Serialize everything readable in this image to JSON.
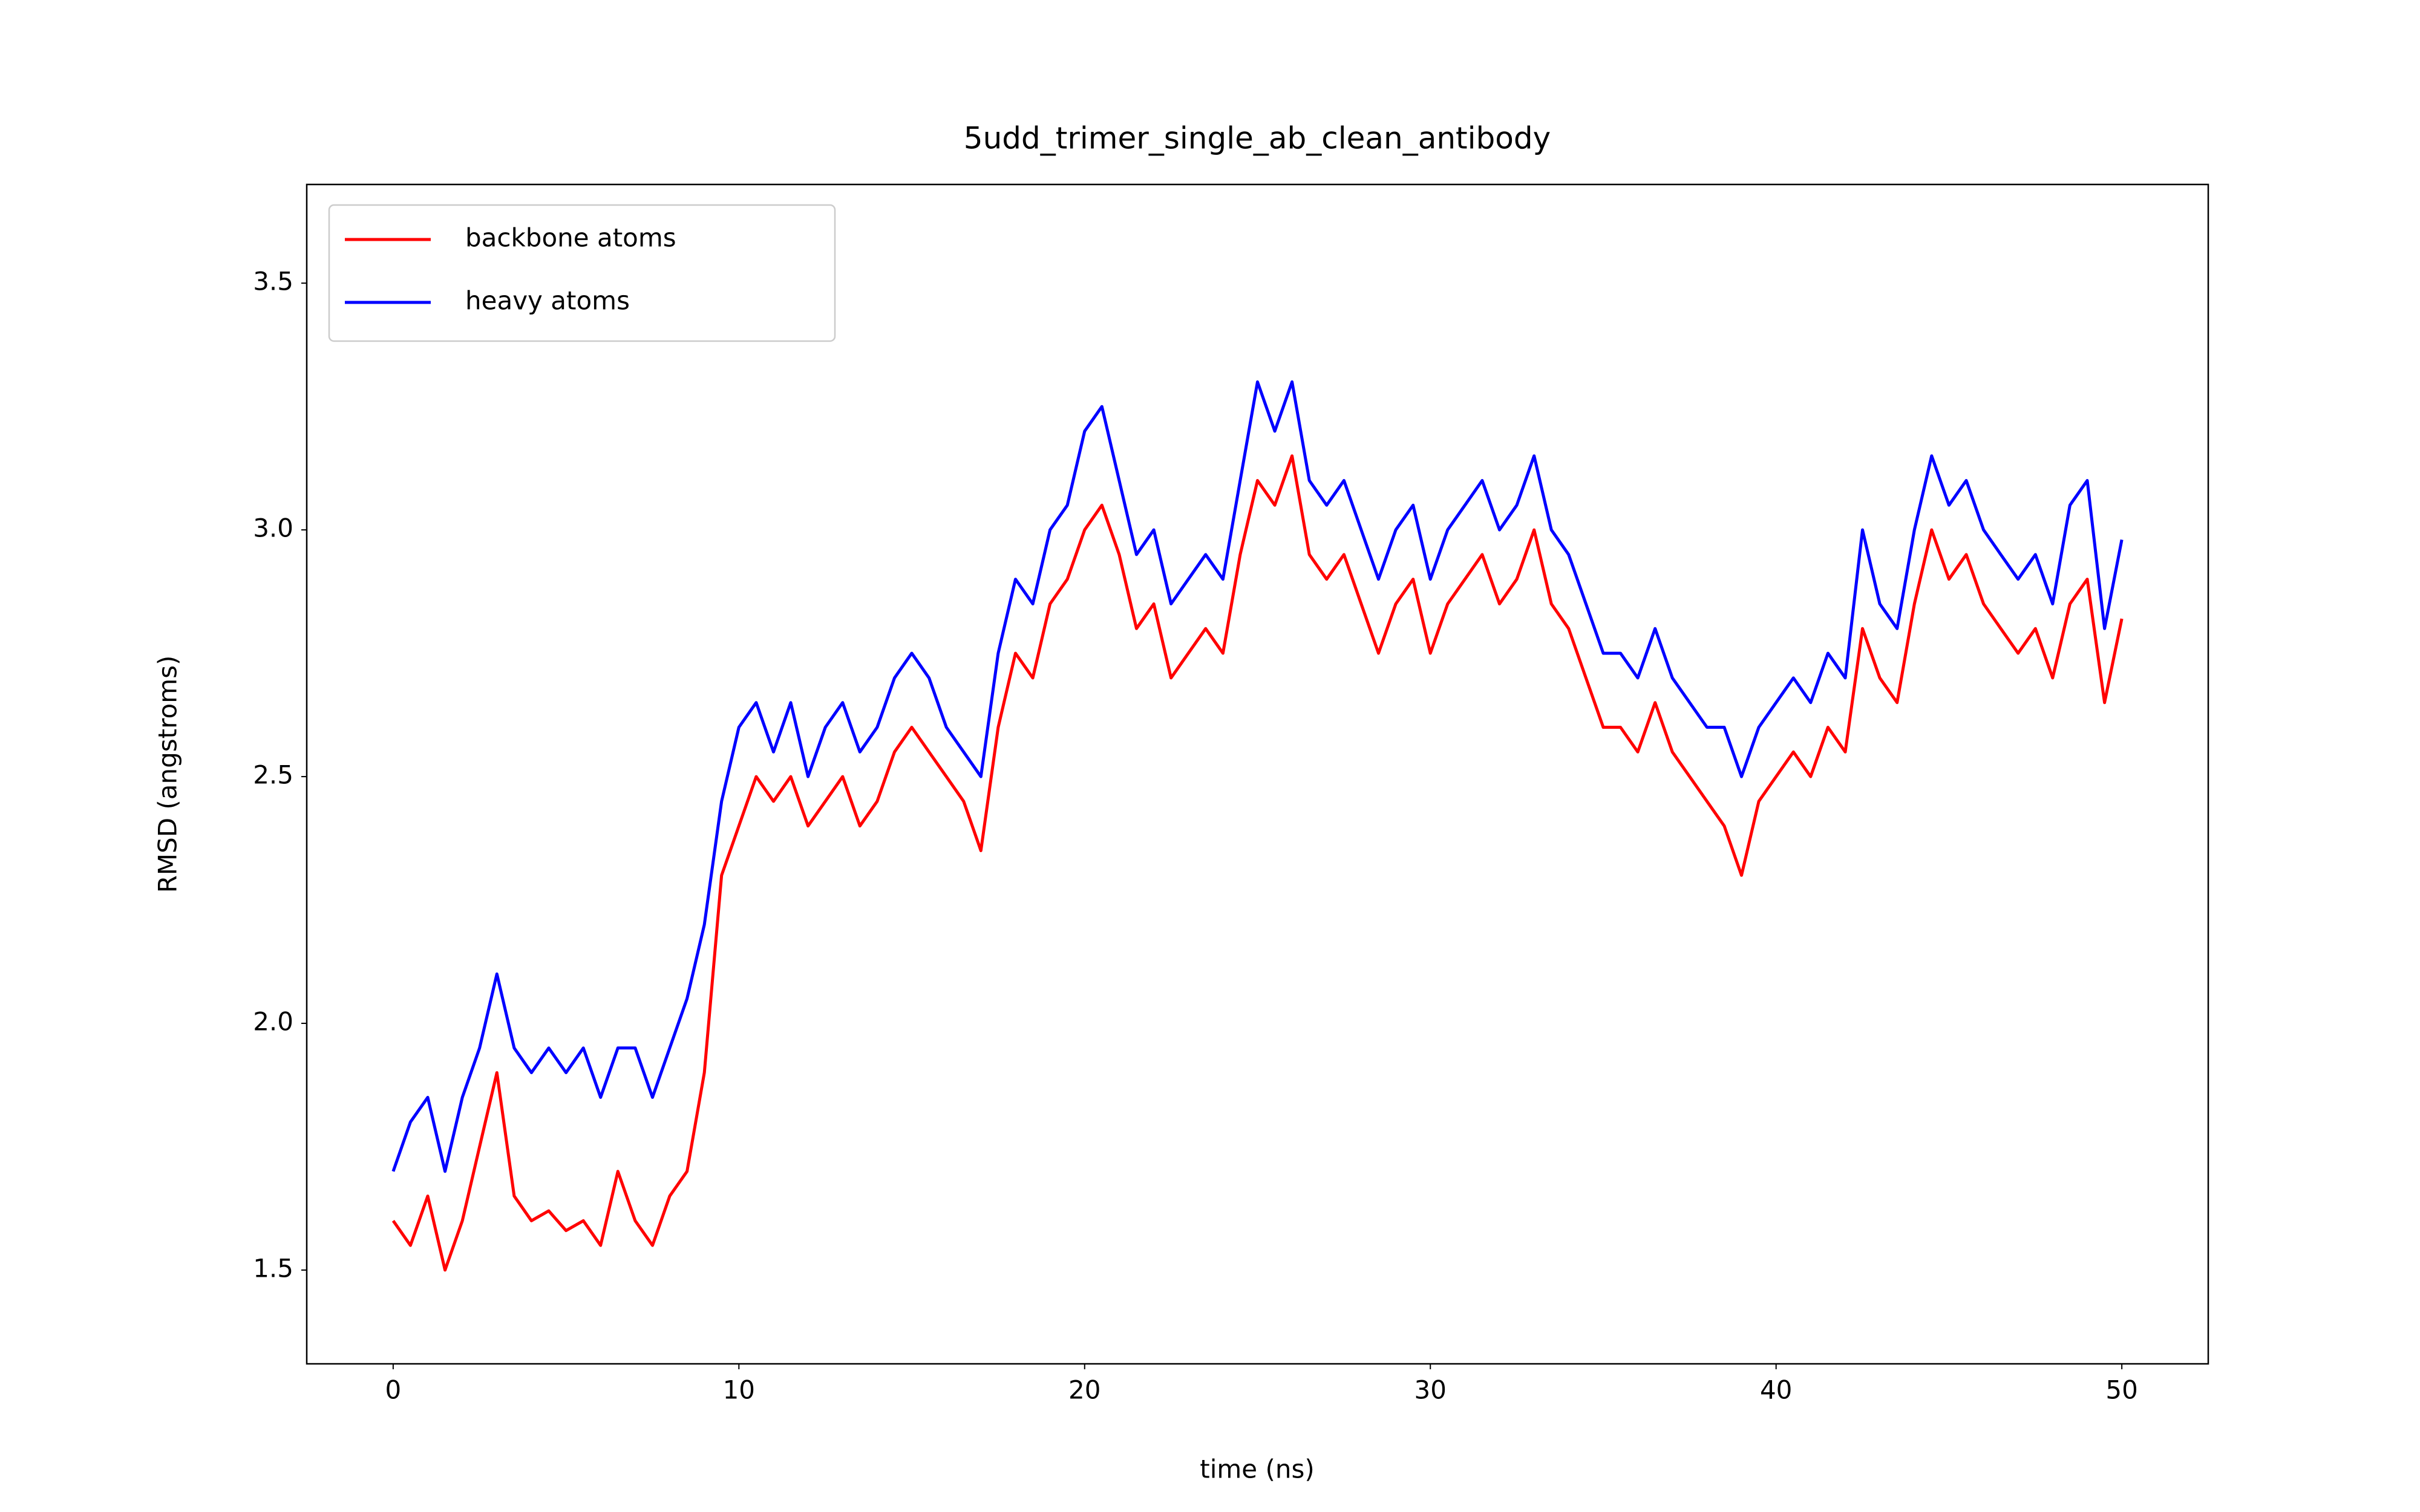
{
  "chart_data": {
    "type": "line",
    "title": "5udd_trimer_single_ab_clean_antibody",
    "x_label": "time (ns)",
    "y_label": "RMSD (angstroms)",
    "x": [
      0,
      0.5,
      1,
      1.5,
      2,
      2.5,
      3,
      3.5,
      4,
      4.5,
      5,
      5.5,
      6,
      6.5,
      7,
      7.5,
      8,
      8.5,
      9,
      9.5,
      10,
      10.5,
      11,
      11.5,
      12,
      12.5,
      13,
      13.5,
      14,
      14.5,
      15,
      15.5,
      16,
      16.5,
      17,
      17.5,
      18,
      18.5,
      19,
      19.5,
      20,
      20.5,
      21,
      21.5,
      22,
      22.5,
      23,
      23.5,
      24,
      24.5,
      25,
      25.5,
      26,
      26.5,
      27,
      27.5,
      28,
      28.5,
      29,
      29.5,
      30,
      30.5,
      31,
      31.5,
      32,
      32.5,
      33,
      33.5,
      34,
      34.5,
      35,
      35.5,
      36,
      36.5,
      37,
      37.5,
      38,
      38.5,
      39,
      39.5,
      40,
      40.5,
      41,
      41.5,
      42,
      42.5,
      43,
      43.5,
      44,
      44.5,
      45,
      45.5,
      46,
      46.5,
      47,
      47.5,
      48,
      48.5,
      49,
      49.5,
      50
    ],
    "series": [
      {
        "name": "backbone atoms",
        "color": "#ff0000",
        "values": [
          1.6,
          1.55,
          1.65,
          1.5,
          1.6,
          1.75,
          1.9,
          1.65,
          1.6,
          1.62,
          1.58,
          1.6,
          1.55,
          1.7,
          1.6,
          1.55,
          1.65,
          1.7,
          1.9,
          2.3,
          2.4,
          2.5,
          2.45,
          2.5,
          2.4,
          2.45,
          2.5,
          2.4,
          2.45,
          2.55,
          2.6,
          2.55,
          2.5,
          2.45,
          2.35,
          2.6,
          2.75,
          2.7,
          2.85,
          2.9,
          3.0,
          3.05,
          2.95,
          2.8,
          2.85,
          2.7,
          2.75,
          2.8,
          2.75,
          2.95,
          3.1,
          3.05,
          3.15,
          2.95,
          2.9,
          2.95,
          2.85,
          2.75,
          2.85,
          2.9,
          2.75,
          2.85,
          2.9,
          2.95,
          2.85,
          2.9,
          3.0,
          2.85,
          2.8,
          2.7,
          2.6,
          2.6,
          2.55,
          2.65,
          2.55,
          2.5,
          2.45,
          2.4,
          2.3,
          2.45,
          2.5,
          2.55,
          2.5,
          2.6,
          2.55,
          2.8,
          2.7,
          2.65,
          2.85,
          3.0,
          2.9,
          2.95,
          2.85,
          2.8,
          2.75,
          2.8,
          2.7,
          2.85,
          2.9,
          2.65,
          2.82
        ]
      },
      {
        "name": "heavy atoms",
        "color": "#0000ff",
        "values": [
          1.7,
          1.8,
          1.85,
          1.7,
          1.85,
          1.95,
          2.1,
          1.95,
          1.9,
          1.95,
          1.9,
          1.95,
          1.85,
          1.95,
          1.95,
          1.85,
          1.95,
          2.05,
          2.2,
          2.45,
          2.6,
          2.65,
          2.55,
          2.65,
          2.5,
          2.6,
          2.65,
          2.55,
          2.6,
          2.7,
          2.75,
          2.7,
          2.6,
          2.55,
          2.5,
          2.75,
          2.9,
          2.85,
          3.0,
          3.05,
          3.2,
          3.25,
          3.1,
          2.95,
          3.0,
          2.85,
          2.9,
          2.95,
          2.9,
          3.1,
          3.3,
          3.2,
          3.3,
          3.1,
          3.05,
          3.1,
          3.0,
          2.9,
          3.0,
          3.05,
          2.9,
          3.0,
          3.05,
          3.1,
          3.0,
          3.05,
          3.15,
          3.0,
          2.95,
          2.85,
          2.75,
          2.75,
          2.7,
          2.8,
          2.7,
          2.65,
          2.6,
          2.6,
          2.5,
          2.6,
          2.65,
          2.7,
          2.65,
          2.75,
          2.7,
          3.0,
          2.85,
          2.8,
          3.0,
          3.15,
          3.05,
          3.1,
          3.0,
          2.95,
          2.9,
          2.95,
          2.85,
          3.05,
          3.1,
          2.8,
          2.98
        ]
      }
    ],
    "xlim": [
      -2.5,
      52.5
    ],
    "ylim": [
      1.31,
      3.7
    ],
    "xticks": [
      0,
      10,
      20,
      30,
      40,
      50
    ],
    "yticks": [
      1.5,
      {
        "value": 2,
        "label": "2.0"
      },
      2.5,
      {
        "value": 3,
        "label": "3.0"
      },
      3.5
    ],
    "legend": "upper left"
  }
}
